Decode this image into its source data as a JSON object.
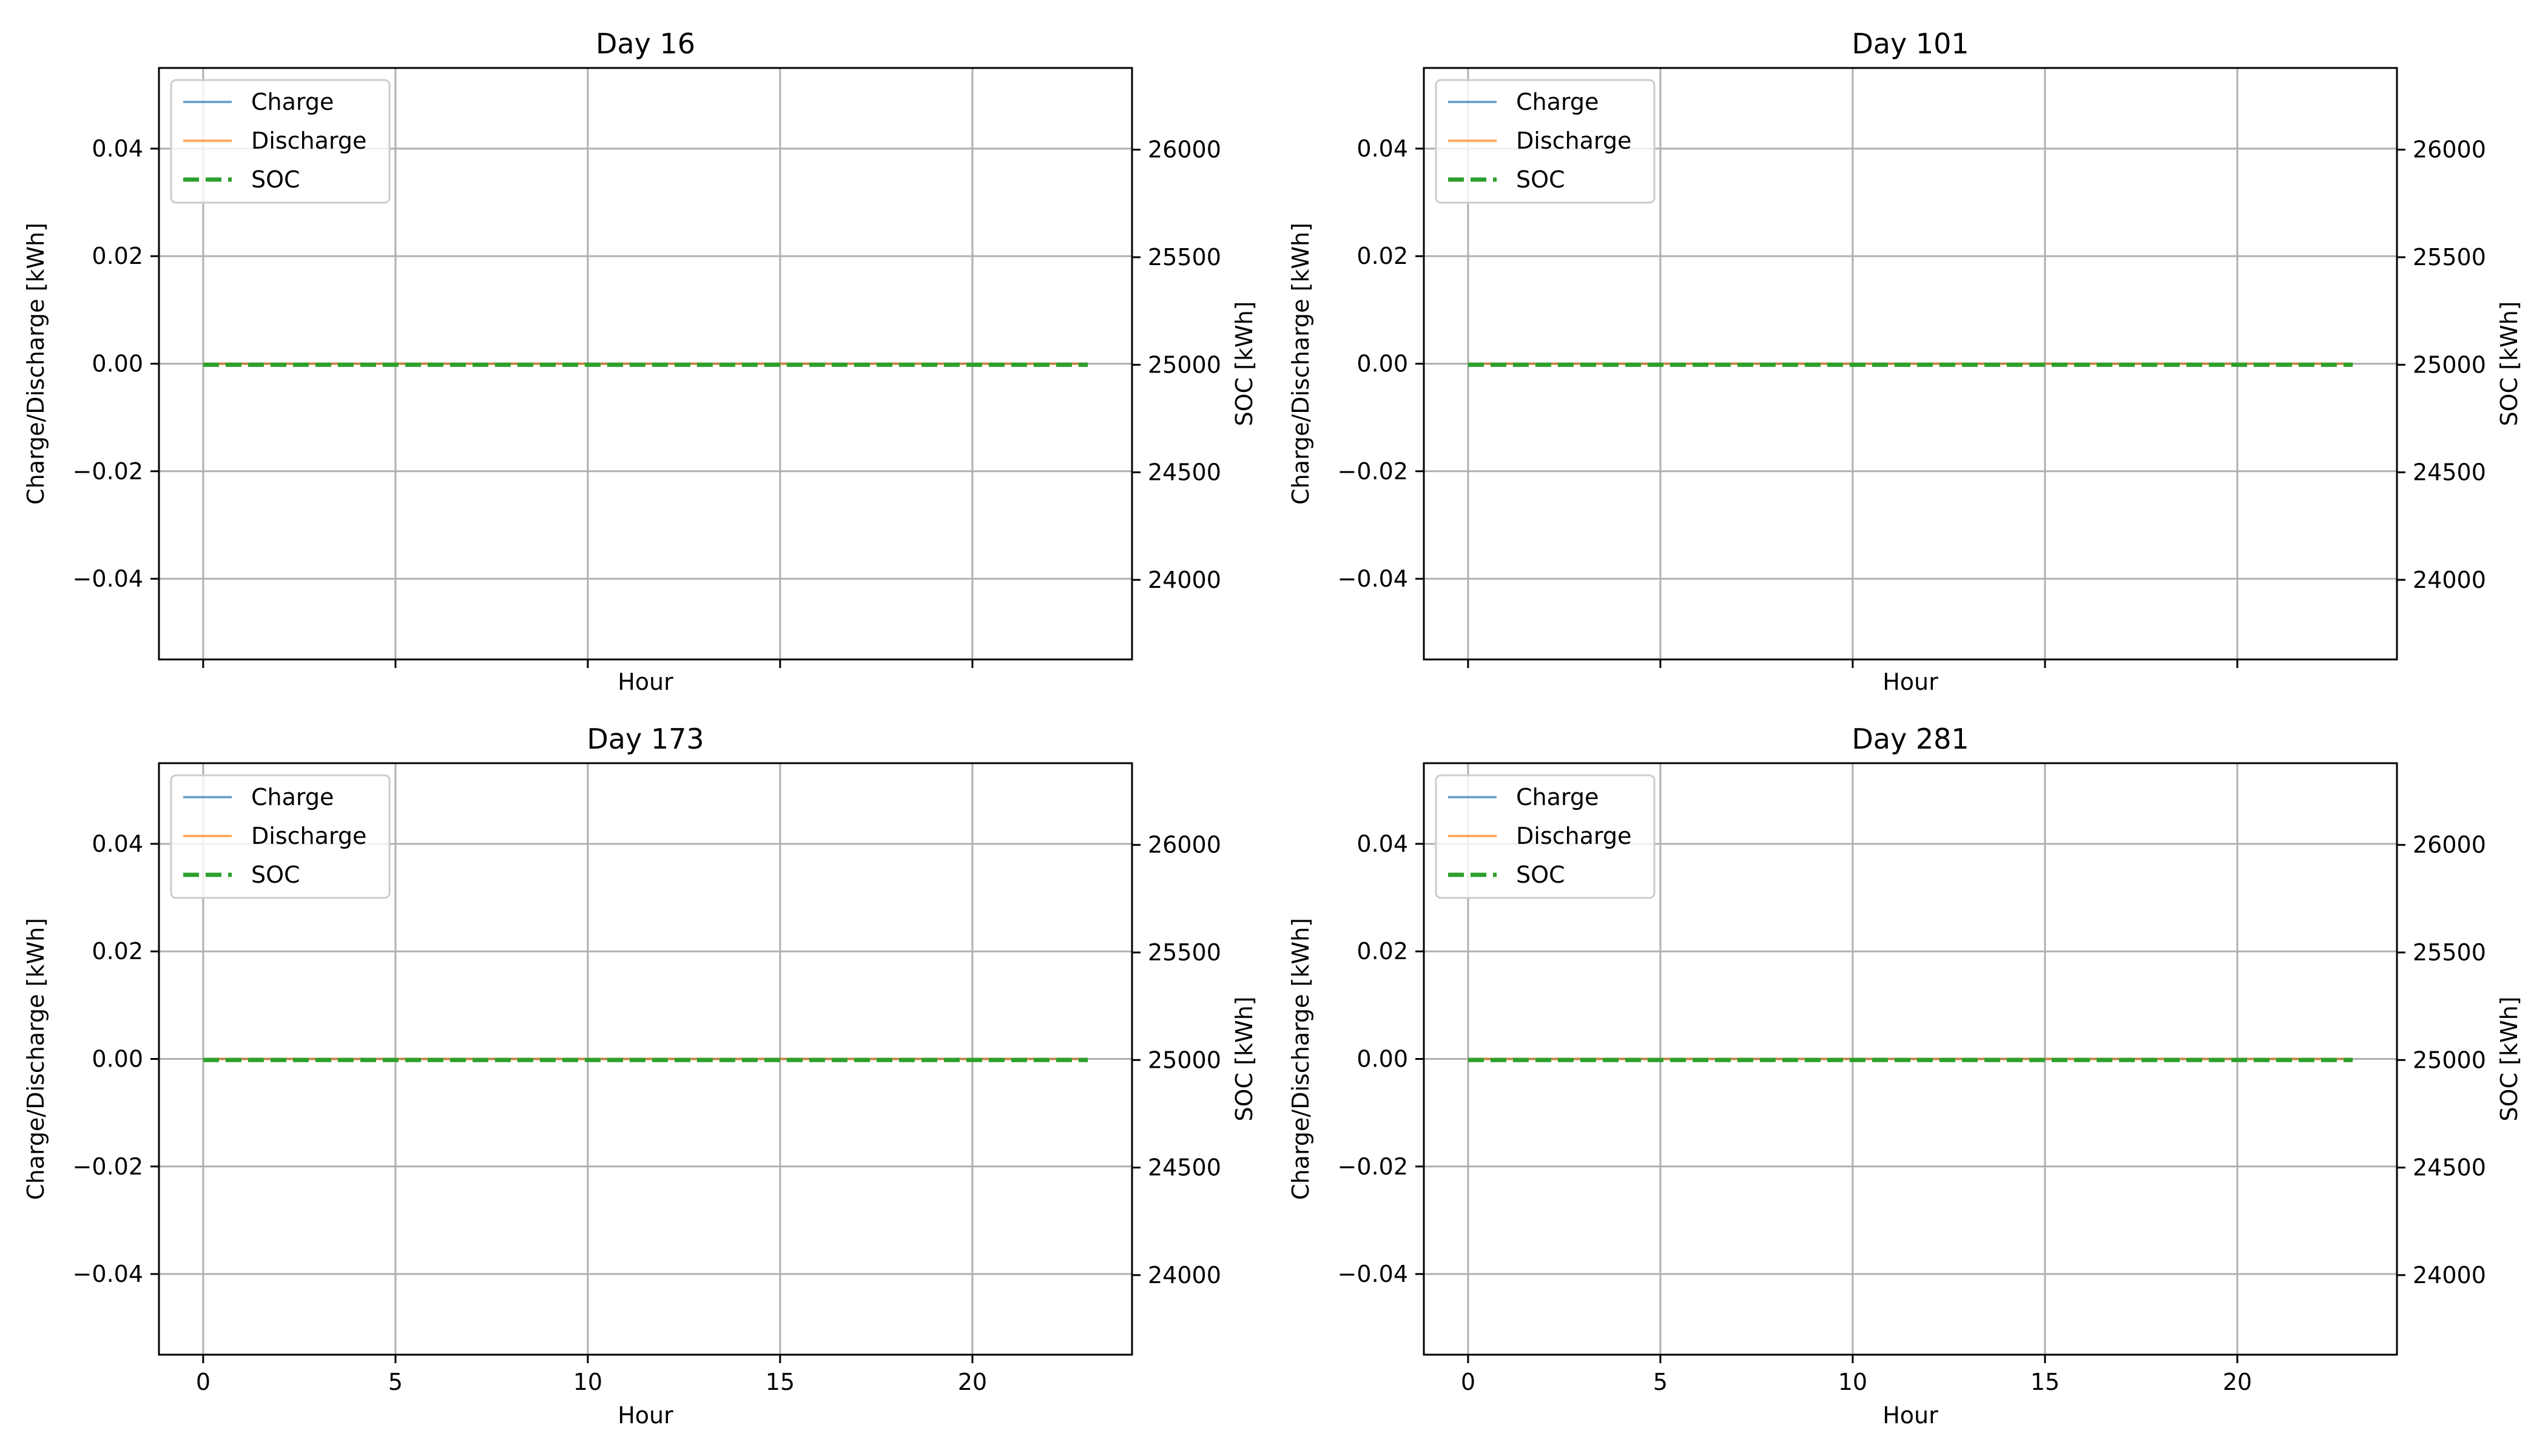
{
  "figure": {
    "background": "#ffffff"
  },
  "colors": {
    "charge": "#1f77b4",
    "discharge": "#ff7f0e",
    "soc": "#2ca02c",
    "grid": "#b0b0b0",
    "axes": "#000000"
  },
  "legend": {
    "position": "upper-left",
    "entries": [
      "Charge",
      "Discharge",
      "SOC"
    ]
  },
  "chart_data": [
    {
      "type": "line",
      "title": "Day 16",
      "xlabel": "Hour",
      "ylabel": "Charge/Discharge [kWh]",
      "y2label": "SOC [kWh]",
      "xlim": [
        -1.15,
        24.15
      ],
      "ylim": [
        -0.055,
        0.055
      ],
      "y2lim": [
        23630,
        26380
      ],
      "xticks": [
        0,
        5,
        10,
        15,
        20
      ],
      "xtick_labels_visible": false,
      "yticks": [
        -0.04,
        -0.02,
        0.0,
        0.02,
        0.04
      ],
      "ytick_labels": [
        "−0.04",
        "−0.02",
        "0.00",
        "0.02",
        "0.04"
      ],
      "y2ticks": [
        24000,
        24500,
        25000,
        25500,
        26000
      ],
      "y2tick_labels": [
        "24000",
        "24500",
        "25000",
        "25500",
        "26000"
      ],
      "grid": true,
      "x": [
        0,
        1,
        2,
        3,
        4,
        5,
        6,
        7,
        8,
        9,
        10,
        11,
        12,
        13,
        14,
        15,
        16,
        17,
        18,
        19,
        20,
        21,
        22,
        23
      ],
      "series": [
        {
          "name": "Charge",
          "axis": "left",
          "style": "solid",
          "values": [
            0,
            0,
            0,
            0,
            0,
            0,
            0,
            0,
            0,
            0,
            0,
            0,
            0,
            0,
            0,
            0,
            0,
            0,
            0,
            0,
            0,
            0,
            0,
            0
          ]
        },
        {
          "name": "Discharge",
          "axis": "left",
          "style": "solid",
          "values": [
            0,
            0,
            0,
            0,
            0,
            0,
            0,
            0,
            0,
            0,
            0,
            0,
            0,
            0,
            0,
            0,
            0,
            0,
            0,
            0,
            0,
            0,
            0,
            0
          ]
        },
        {
          "name": "SOC",
          "axis": "right",
          "style": "dashed",
          "values": [
            25000,
            25000,
            25000,
            25000,
            25000,
            25000,
            25000,
            25000,
            25000,
            25000,
            25000,
            25000,
            25000,
            25000,
            25000,
            25000,
            25000,
            25000,
            25000,
            25000,
            25000,
            25000,
            25000,
            25000
          ]
        }
      ]
    },
    {
      "type": "line",
      "title": "Day 101",
      "xlabel": "Hour",
      "ylabel": "Charge/Discharge [kWh]",
      "y2label": "SOC [kWh]",
      "xlim": [
        -1.15,
        24.15
      ],
      "ylim": [
        -0.055,
        0.055
      ],
      "y2lim": [
        23630,
        26380
      ],
      "xticks": [
        0,
        5,
        10,
        15,
        20
      ],
      "xtick_labels_visible": false,
      "yticks": [
        -0.04,
        -0.02,
        0.0,
        0.02,
        0.04
      ],
      "ytick_labels": [
        "−0.04",
        "−0.02",
        "0.00",
        "0.02",
        "0.04"
      ],
      "y2ticks": [
        24000,
        24500,
        25000,
        25500,
        26000
      ],
      "y2tick_labels": [
        "24000",
        "24500",
        "25000",
        "25500",
        "26000"
      ],
      "grid": true,
      "x": [
        0,
        1,
        2,
        3,
        4,
        5,
        6,
        7,
        8,
        9,
        10,
        11,
        12,
        13,
        14,
        15,
        16,
        17,
        18,
        19,
        20,
        21,
        22,
        23
      ],
      "series": [
        {
          "name": "Charge",
          "axis": "left",
          "style": "solid",
          "values": [
            0,
            0,
            0,
            0,
            0,
            0,
            0,
            0,
            0,
            0,
            0,
            0,
            0,
            0,
            0,
            0,
            0,
            0,
            0,
            0,
            0,
            0,
            0,
            0
          ]
        },
        {
          "name": "Discharge",
          "axis": "left",
          "style": "solid",
          "values": [
            0,
            0,
            0,
            0,
            0,
            0,
            0,
            0,
            0,
            0,
            0,
            0,
            0,
            0,
            0,
            0,
            0,
            0,
            0,
            0,
            0,
            0,
            0,
            0
          ]
        },
        {
          "name": "SOC",
          "axis": "right",
          "style": "dashed",
          "values": [
            25000,
            25000,
            25000,
            25000,
            25000,
            25000,
            25000,
            25000,
            25000,
            25000,
            25000,
            25000,
            25000,
            25000,
            25000,
            25000,
            25000,
            25000,
            25000,
            25000,
            25000,
            25000,
            25000,
            25000
          ]
        }
      ]
    },
    {
      "type": "line",
      "title": "Day 173",
      "xlabel": "Hour",
      "ylabel": "Charge/Discharge [kWh]",
      "y2label": "SOC [kWh]",
      "xlim": [
        -1.15,
        24.15
      ],
      "ylim": [
        -0.055,
        0.055
      ],
      "y2lim": [
        23630,
        26380
      ],
      "xticks": [
        0,
        5,
        10,
        15,
        20
      ],
      "xtick_labels_visible": true,
      "xtick_labels": [
        "0",
        "5",
        "10",
        "15",
        "20"
      ],
      "yticks": [
        -0.04,
        -0.02,
        0.0,
        0.02,
        0.04
      ],
      "ytick_labels": [
        "−0.04",
        "−0.02",
        "0.00",
        "0.02",
        "0.04"
      ],
      "y2ticks": [
        24000,
        24500,
        25000,
        25500,
        26000
      ],
      "y2tick_labels": [
        "24000",
        "24500",
        "25000",
        "25500",
        "26000"
      ],
      "grid": true,
      "x": [
        0,
        1,
        2,
        3,
        4,
        5,
        6,
        7,
        8,
        9,
        10,
        11,
        12,
        13,
        14,
        15,
        16,
        17,
        18,
        19,
        20,
        21,
        22,
        23
      ],
      "series": [
        {
          "name": "Charge",
          "axis": "left",
          "style": "solid",
          "values": [
            0,
            0,
            0,
            0,
            0,
            0,
            0,
            0,
            0,
            0,
            0,
            0,
            0,
            0,
            0,
            0,
            0,
            0,
            0,
            0,
            0,
            0,
            0,
            0
          ]
        },
        {
          "name": "Discharge",
          "axis": "left",
          "style": "solid",
          "values": [
            0,
            0,
            0,
            0,
            0,
            0,
            0,
            0,
            0,
            0,
            0,
            0,
            0,
            0,
            0,
            0,
            0,
            0,
            0,
            0,
            0,
            0,
            0,
            0
          ]
        },
        {
          "name": "SOC",
          "axis": "right",
          "style": "dashed",
          "values": [
            25000,
            25000,
            25000,
            25000,
            25000,
            25000,
            25000,
            25000,
            25000,
            25000,
            25000,
            25000,
            25000,
            25000,
            25000,
            25000,
            25000,
            25000,
            25000,
            25000,
            25000,
            25000,
            25000,
            25000
          ]
        }
      ]
    },
    {
      "type": "line",
      "title": "Day 281",
      "xlabel": "Hour",
      "ylabel": "Charge/Discharge [kWh]",
      "y2label": "SOC [kWh]",
      "xlim": [
        -1.15,
        24.15
      ],
      "ylim": [
        -0.055,
        0.055
      ],
      "y2lim": [
        23630,
        26380
      ],
      "xticks": [
        0,
        5,
        10,
        15,
        20
      ],
      "xtick_labels_visible": true,
      "xtick_labels": [
        "0",
        "5",
        "10",
        "15",
        "20"
      ],
      "yticks": [
        -0.04,
        -0.02,
        0.0,
        0.02,
        0.04
      ],
      "ytick_labels": [
        "−0.04",
        "−0.02",
        "0.00",
        "0.02",
        "0.04"
      ],
      "y2ticks": [
        24000,
        24500,
        25000,
        25500,
        26000
      ],
      "y2tick_labels": [
        "24000",
        "24500",
        "25000",
        "25500",
        "26000"
      ],
      "grid": true,
      "x": [
        0,
        1,
        2,
        3,
        4,
        5,
        6,
        7,
        8,
        9,
        10,
        11,
        12,
        13,
        14,
        15,
        16,
        17,
        18,
        19,
        20,
        21,
        22,
        23
      ],
      "series": [
        {
          "name": "Charge",
          "axis": "left",
          "style": "solid",
          "values": [
            0,
            0,
            0,
            0,
            0,
            0,
            0,
            0,
            0,
            0,
            0,
            0,
            0,
            0,
            0,
            0,
            0,
            0,
            0,
            0,
            0,
            0,
            0,
            0
          ]
        },
        {
          "name": "Discharge",
          "axis": "left",
          "style": "solid",
          "values": [
            0,
            0,
            0,
            0,
            0,
            0,
            0,
            0,
            0,
            0,
            0,
            0,
            0,
            0,
            0,
            0,
            0,
            0,
            0,
            0,
            0,
            0,
            0,
            0
          ]
        },
        {
          "name": "SOC",
          "axis": "right",
          "style": "dashed",
          "values": [
            25000,
            25000,
            25000,
            25000,
            25000,
            25000,
            25000,
            25000,
            25000,
            25000,
            25000,
            25000,
            25000,
            25000,
            25000,
            25000,
            25000,
            25000,
            25000,
            25000,
            25000,
            25000,
            25000,
            25000
          ]
        }
      ]
    }
  ]
}
